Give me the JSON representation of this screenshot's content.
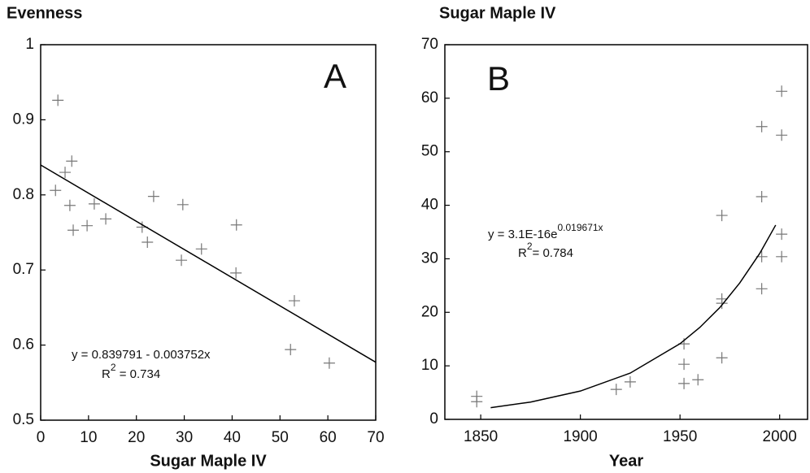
{
  "chart_data": [
    {
      "type": "scatter",
      "title": "Evenness",
      "x_label": "Sugar Maple IV",
      "panel": "A",
      "x": [
        3.6,
        3.1,
        5.1,
        6.5,
        6.1,
        6.8,
        9.7,
        11.2,
        13.6,
        21.2,
        22.3,
        23.6,
        29.7,
        29.4,
        33.6,
        40.9,
        40.8,
        53.0,
        52.2,
        60.3
      ],
      "values": [
        0.926,
        0.806,
        0.83,
        0.845,
        0.786,
        0.753,
        0.759,
        0.788,
        0.768,
        0.757,
        0.737,
        0.798,
        0.787,
        0.713,
        0.728,
        0.76,
        0.696,
        0.659,
        0.594,
        0.576
      ],
      "color": "#777777",
      "trend": {
        "x": [
          0,
          70
        ],
        "values": [
          0.8398,
          0.5772
        ],
        "color": "#000000"
      },
      "annotations": [
        {
          "text": "y = 0.839791 - 0.003752x"
        },
        {
          "text": "R",
          "sup": "2",
          "after": " = 0.734"
        }
      ],
      "xlim": [
        0,
        70
      ],
      "xticks": [
        0,
        10,
        20,
        30,
        40,
        50,
        60,
        70
      ],
      "ylim": [
        0.5,
        1
      ],
      "yticks": [
        0.5,
        0.6,
        0.7,
        0.8,
        0.9,
        1
      ]
    },
    {
      "type": "scatter",
      "title": "Sugar Maple IV",
      "x_label": "Year",
      "panel": "B",
      "x": [
        1848,
        1848,
        1918,
        1925,
        1952,
        1952,
        1952,
        1959,
        1971,
        1971,
        1971,
        1971,
        1991,
        1991,
        1991,
        1991,
        2001,
        2001,
        2001,
        2001
      ],
      "values": [
        4.3,
        3.3,
        5.6,
        7.0,
        14.1,
        10.3,
        6.7,
        7.4,
        38.1,
        22.5,
        21.7,
        11.5,
        54.7,
        41.6,
        30.4,
        24.4,
        61.3,
        53.1,
        34.6,
        30.4
      ],
      "color": "#777777",
      "trend": {
        "x": [
          1855,
          1875,
          1900,
          1925,
          1950,
          1960,
          1970,
          1980,
          1990,
          1998
        ],
        "values": [
          2.18,
          3.23,
          5.29,
          8.64,
          14.13,
          17.2,
          20.9,
          25.5,
          31.0,
          36.3
        ],
        "color": "#000000"
      },
      "annotations": [
        {
          "text": "y = 3.1E-16e",
          "sup": "0.019671x"
        },
        {
          "text": "R",
          "sup": "2",
          "after": "= 0.784"
        }
      ],
      "xlim": [
        1832,
        2014
      ],
      "xticks": [
        1850,
        1900,
        1950,
        2000
      ],
      "ylim": [
        0,
        70
      ],
      "yticks": [
        0,
        10,
        20,
        30,
        40,
        50,
        60,
        70
      ]
    }
  ]
}
